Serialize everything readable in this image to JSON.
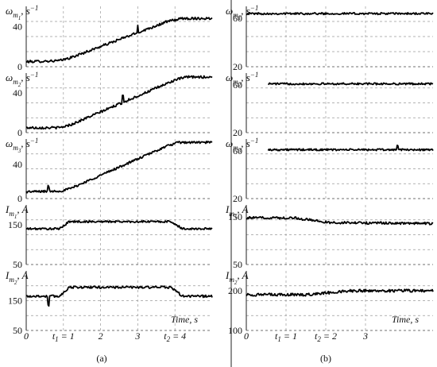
{
  "chart_data": [
    {
      "panel": "(a)",
      "type": "line",
      "caption": "(a)",
      "x_ticks": [
        {
          "x": 0,
          "label": "0"
        },
        {
          "x": 1,
          "label": "t1 = 1",
          "main": "t",
          "sub": "1",
          "rest": " = 1"
        },
        {
          "x": 2,
          "label": "2"
        },
        {
          "x": 3,
          "label": "3"
        },
        {
          "x": 4,
          "label": "t2 = 4",
          "main": "t",
          "sub": "2",
          "rest": " = 4"
        }
      ],
      "xlim": [
        0,
        5
      ],
      "x_axis_note": "Time, s",
      "grid": true,
      "subplots": [
        {
          "ylabel": "ωm1, s−1",
          "y_main": "ω",
          "y_sub": "m",
          "y_subsub": "1",
          "y_unit": ", s",
          "y_sup": "−1",
          "ylim": [
            0,
            60
          ],
          "yticks": [
            0,
            40
          ],
          "noise": 1.2,
          "spike": [
            3,
            3.5
          ],
          "x": [
            0,
            0.9,
            1.2,
            3.8,
            4.2,
            5
          ],
          "y": [
            5,
            6,
            9,
            45,
            48,
            48
          ]
        },
        {
          "ylabel": "ωm2, s−1",
          "y_main": "ω",
          "y_sub": "m",
          "y_subsub": "2",
          "y_unit": ", s",
          "y_sup": "−1",
          "ylim": [
            0,
            60
          ],
          "yticks": [
            0,
            40
          ],
          "noise": 1.2,
          "spike": [
            2.6,
            3.5
          ],
          "x": [
            0,
            0.9,
            1.2,
            4.0,
            4.3,
            5
          ],
          "y": [
            5,
            5,
            8,
            53,
            56,
            56
          ]
        },
        {
          "ylabel": "ωm3, s−1",
          "y_main": "ω",
          "y_sub": "m",
          "y_subsub": "3",
          "y_unit": ", s",
          "y_sup": "−1",
          "ylim": [
            0,
            70
          ],
          "yticks": [
            0,
            40
          ],
          "noise": 1.3,
          "spike": [
            0.6,
            3
          ],
          "x": [
            0,
            0.95,
            1.2,
            3.8,
            4.1,
            5
          ],
          "y": [
            8,
            9,
            12,
            62,
            66,
            66
          ]
        },
        {
          "ylabel": "Im1, A",
          "y_main": "I",
          "y_sub": "m",
          "y_subsub": "1",
          "y_unit": ", A",
          "y_sup": "",
          "ylim": [
            50,
            200
          ],
          "yticks": [
            50,
            150
          ],
          "noise": 2.5,
          "x": [
            0,
            0.9,
            1.15,
            3.9,
            4.2,
            5
          ],
          "y": [
            140,
            140,
            158,
            158,
            140,
            140
          ]
        },
        {
          "ylabel": "Im2, A",
          "y_main": "I",
          "y_sub": "m",
          "y_subsub": "2",
          "y_unit": ", A",
          "y_sup": "",
          "ylim": [
            50,
            250
          ],
          "yticks": [
            50,
            150
          ],
          "noise": 4,
          "spike": [
            0.6,
            -15
          ],
          "x": [
            0,
            0.9,
            1.15,
            3.9,
            4.2,
            5
          ],
          "y": [
            165,
            165,
            195,
            195,
            165,
            165
          ]
        }
      ]
    },
    {
      "panel": "(b)",
      "type": "line",
      "caption": "(b)",
      "x_ticks": [
        {
          "x": 0,
          "label": "0"
        },
        {
          "x": 1,
          "label": "t1 = 1",
          "main": "t",
          "sub": "1",
          "rest": " = 1"
        },
        {
          "x": 2,
          "label": "t2 = 2",
          "main": "t",
          "sub": "2",
          "rest": " = 2"
        },
        {
          "x": 3,
          "label": "3"
        }
      ],
      "xlim": [
        0,
        4.7
      ],
      "x_axis_note": "Time, s",
      "grid": true,
      "subplots": [
        {
          "ylabel": "ωm1, s−1",
          "y_main": "ω",
          "y_sub": "m",
          "y_subsub": "1",
          "y_unit": ", s",
          "y_sup": "−1",
          "ylim": [
            20,
            70
          ],
          "yticks": [
            20,
            60
          ],
          "noise": 0.8,
          "x": [
            0,
            4.7
          ],
          "y": [
            64,
            64
          ]
        },
        {
          "ylabel": "ωm2, s−1",
          "y_main": "ω",
          "y_sub": "m",
          "y_subsub": "2",
          "y_unit": ", s",
          "y_sup": "−1",
          "ylim": [
            20,
            70
          ],
          "yticks": [
            20,
            60
          ],
          "noise": 0.8,
          "x_start": 0.55,
          "x": [
            0.55,
            4.7
          ],
          "y": [
            61,
            61
          ]
        },
        {
          "ylabel": "ωm3, s−1",
          "y_main": "ω",
          "y_sub": "m",
          "y_subsub": "3",
          "y_unit": ", s",
          "y_sup": "−1",
          "ylim": [
            20,
            70
          ],
          "yticks": [
            20,
            60
          ],
          "noise": 0.8,
          "x_start": 0.55,
          "spike": [
            3.8,
            2
          ],
          "x": [
            0.55,
            4.7
          ],
          "y": [
            61,
            61
          ]
        },
        {
          "ylabel": "Im1, A",
          "y_main": "I",
          "y_sub": "m",
          "y_subsub": "1",
          "y_unit": ", A",
          "y_sup": "",
          "ylim": [
            50,
            175
          ],
          "yticks": [
            50,
            150
          ],
          "noise": 2.5,
          "x": [
            0,
            1.2,
            2.1,
            4.7
          ],
          "y": [
            148,
            148,
            138,
            136
          ]
        },
        {
          "ylabel": "Im2, A",
          "y_main": "I",
          "y_sub": "m",
          "y_subsub": "2",
          "y_unit": ", A",
          "y_sup": "",
          "ylim": [
            100,
            250
          ],
          "yticks": [
            100,
            200
          ],
          "noise": 3.5,
          "x": [
            0,
            1.5,
            2.6,
            4.7
          ],
          "y": [
            190,
            190,
            200,
            200
          ]
        }
      ]
    }
  ]
}
